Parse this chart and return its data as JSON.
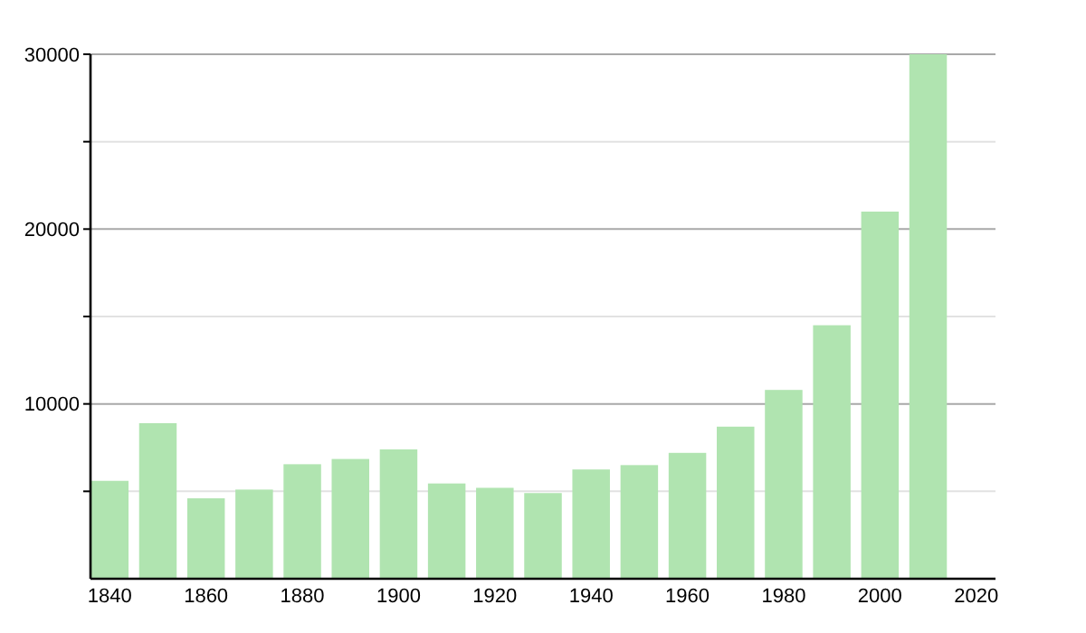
{
  "chart_data": {
    "type": "bar",
    "x": [
      1840,
      1850,
      1860,
      1870,
      1880,
      1890,
      1900,
      1910,
      1920,
      1930,
      1940,
      1950,
      1960,
      1970,
      1980,
      1990,
      2000,
      2010
    ],
    "values": [
      5600,
      8900,
      4600,
      5100,
      6550,
      6850,
      7400,
      5450,
      5200,
      4900,
      6250,
      6500,
      7200,
      8700,
      10800,
      14500,
      21000,
      30000
    ],
    "color": "#b0e4b0",
    "xlim": [
      1836,
      2024
    ],
    "xticks": [
      1840,
      1860,
      1880,
      1900,
      1920,
      1940,
      1960,
      1980,
      2000,
      2020
    ],
    "ylim": [
      0,
      30000
    ],
    "yticks": [
      {
        "value": 5000,
        "label": null
      },
      10000,
      {
        "value": 15000,
        "label": null
      },
      20000,
      {
        "value": 25000,
        "label": null
      },
      30000
    ],
    "grid": "y"
  }
}
